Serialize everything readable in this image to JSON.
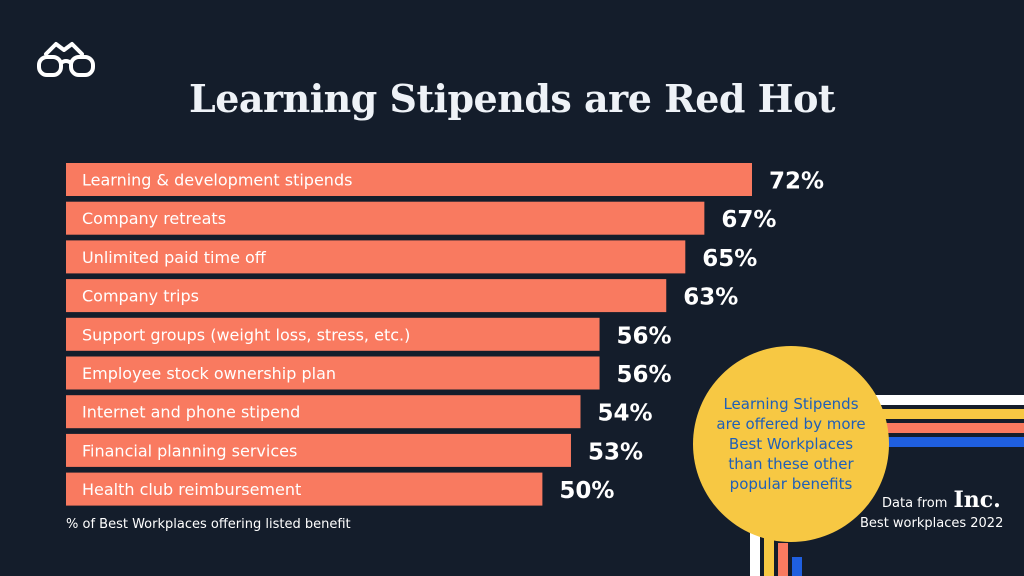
{
  "title": "Learning Stipends are Red Hot",
  "footnote": "% of Best Workplaces offering listed benefit",
  "callout": "Learning Stipends are offered by more Best Workplaces than these other popular benefits",
  "source": {
    "prefix": "Data from",
    "brand": "Inc.",
    "line2": "Best workplaces 2022"
  },
  "logo_icon": "glasses-logo-icon",
  "colors": {
    "background": "#141d2b",
    "bar": "#f97a60",
    "bar_label": "#ffffff",
    "value_label": "#ffffff",
    "callout_bg": "#f7c843",
    "callout_text": "#1f5fb8",
    "stripes": [
      "#ffffff",
      "#f7c843",
      "#f97a60",
      "#1f5fe0"
    ]
  },
  "chart_data": {
    "type": "bar",
    "orientation": "horizontal",
    "categories": [
      "Learning & development stipends",
      "Company retreats",
      "Unlimited paid time off",
      "Company trips",
      "Support groups (weight loss, stress, etc.)",
      "Employee stock ownership plan",
      "Internet and phone stipend",
      "Financial planning services",
      "Health club reimbursement"
    ],
    "values": [
      72,
      67,
      65,
      63,
      56,
      56,
      54,
      53,
      50
    ],
    "value_labels": [
      "72%",
      "67%",
      "65%",
      "63%",
      "56%",
      "56%",
      "54%",
      "53%",
      "50%"
    ],
    "xlim": [
      0,
      72
    ],
    "grid": false,
    "legend": "none"
  }
}
